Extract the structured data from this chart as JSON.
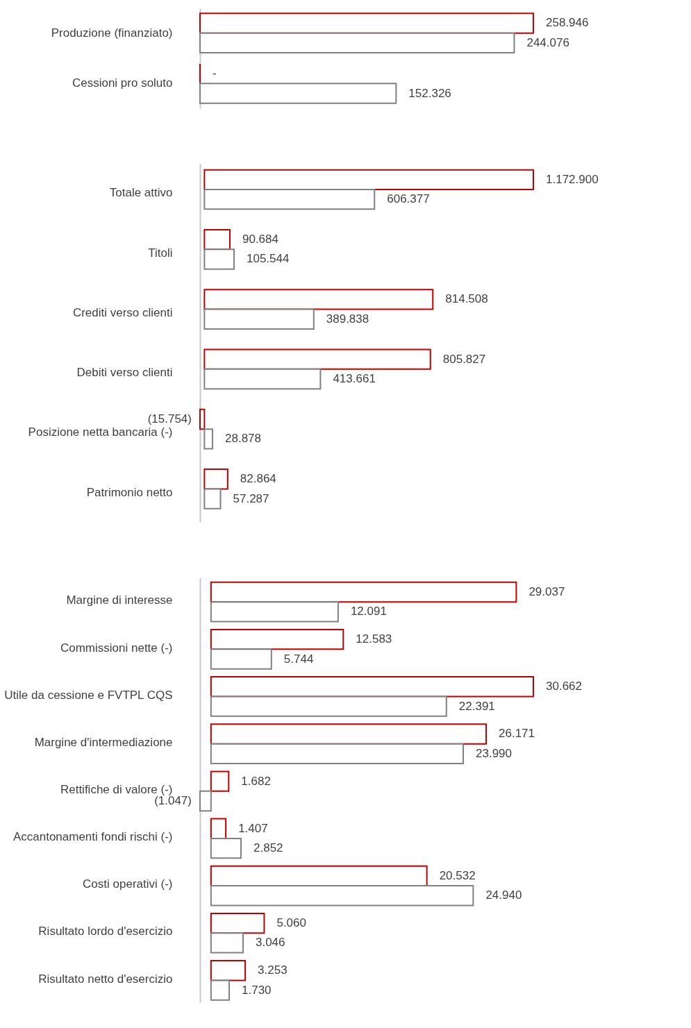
{
  "chart_data": [
    {
      "type": "bar",
      "orientation": "horizontal",
      "data_labels": true,
      "grid": false,
      "legend": false,
      "categories": [
        "Produzione (finanziato)",
        "Cessioni pro soluto"
      ],
      "series": [
        {
          "color": "#c00000",
          "values": [
            258946,
            0
          ],
          "value_labels": [
            "258.946",
            "-"
          ]
        },
        {
          "color": "#808080",
          "values": [
            244076,
            152326
          ],
          "value_labels": [
            "244.076",
            "152.326"
          ]
        }
      ]
    },
    {
      "type": "bar",
      "orientation": "horizontal",
      "data_labels": true,
      "grid": false,
      "legend": false,
      "categories": [
        "Totale attivo",
        "Titoli",
        "Crediti verso clienti",
        "Debiti verso clienti",
        "Posizione netta bancaria  (-)",
        "Patrimonio netto"
      ],
      "series": [
        {
          "color": "#c00000",
          "values": [
            1172900,
            90684,
            814508,
            805827,
            -15754,
            82864
          ],
          "value_labels": [
            "1.172.900",
            "90.684",
            "814.508",
            "805.827",
            "(15.754)",
            "82.864"
          ]
        },
        {
          "color": "#808080",
          "values": [
            606377,
            105544,
            389838,
            413661,
            28878,
            57287
          ],
          "value_labels": [
            "606.377",
            "105.544",
            "389.838",
            "413.661",
            "28.878",
            "57.287"
          ]
        }
      ]
    },
    {
      "type": "bar",
      "orientation": "horizontal",
      "data_labels": true,
      "grid": false,
      "legend": false,
      "categories": [
        "Margine di interesse",
        "Commissioni nette (-)",
        "Utile da cessione e FVTPL CQS",
        "Margine d'intermediazione",
        "Rettifiche di valore (-)",
        "Accantonamenti fondi rischi (-)",
        "Costi operativi (-)",
        "Risultato lordo d'esercizio",
        "Risultato netto d'esercizio"
      ],
      "series": [
        {
          "color": "#c00000",
          "values": [
            29037,
            12583,
            30662,
            26171,
            1682,
            1407,
            20532,
            5060,
            3253
          ],
          "value_labels": [
            "29.037",
            "12.583",
            "30.662",
            "26.171",
            "1.682",
            "1.407",
            "20.532",
            "5.060",
            "3.253"
          ]
        },
        {
          "color": "#808080",
          "values": [
            12091,
            5744,
            22391,
            23990,
            -1047,
            2852,
            24940,
            3046,
            1730
          ],
          "value_labels": [
            "12.091",
            "5.744",
            "22.391",
            "23.990",
            "(1.047)",
            "2.852",
            "24.940",
            "3.046",
            "1.730"
          ]
        }
      ]
    }
  ]
}
